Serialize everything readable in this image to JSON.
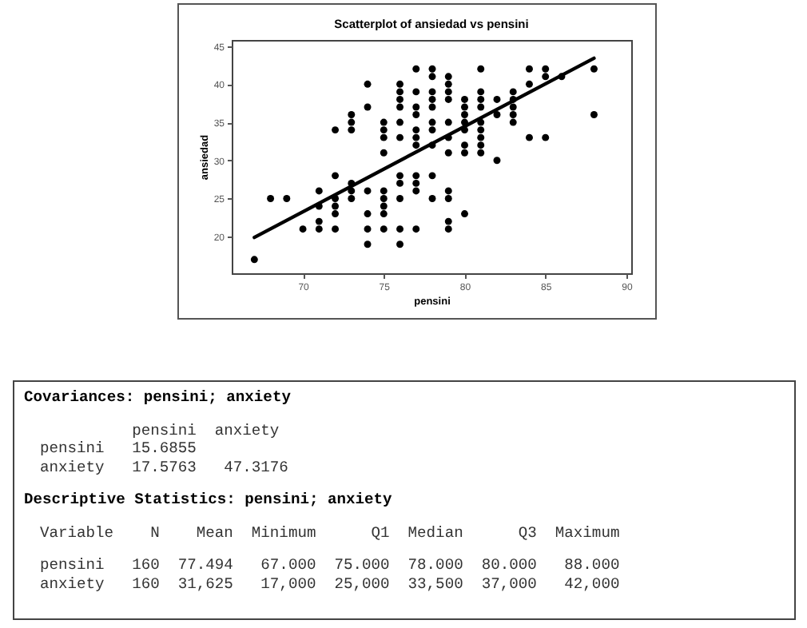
{
  "chart_data": {
    "type": "scatter",
    "title": "Scatterplot of ansiedad vs pensini",
    "xlabel": "pensini",
    "ylabel": "ansiedad",
    "xlim": [
      65.6,
      90.3
    ],
    "xticks": [
      70,
      75,
      80,
      85,
      90
    ],
    "ylim": [
      15.2,
      45.8
    ],
    "yticks": [
      20,
      25,
      30,
      35,
      40,
      45
    ],
    "series": [
      {
        "type": "scatter",
        "marker": "circle",
        "color": "#000000",
        "x": [
          67,
          68,
          69,
          70,
          71,
          71,
          71,
          71,
          72,
          72,
          72,
          72,
          72,
          72,
          73,
          73,
          73,
          73,
          73,
          73,
          74,
          74,
          74,
          74,
          74,
          74,
          75,
          75,
          75,
          75,
          75,
          75,
          75,
          75,
          75,
          76,
          76,
          76,
          76,
          76,
          76,
          76,
          76,
          76,
          76,
          76,
          77,
          77,
          77,
          77,
          77,
          77,
          77,
          77,
          77,
          77,
          77,
          78,
          78,
          78,
          78,
          78,
          78,
          78,
          78,
          78,
          78,
          79,
          79,
          79,
          79,
          79,
          79,
          79,
          79,
          79,
          79,
          79,
          80,
          80,
          80,
          80,
          80,
          80,
          80,
          80,
          81,
          81,
          81,
          81,
          81,
          81,
          81,
          81,
          81,
          82,
          82,
          82,
          83,
          83,
          83,
          83,
          83,
          84,
          84,
          84,
          85,
          85,
          85,
          86,
          88,
          88
        ],
        "values": [
          17,
          25,
          25,
          21,
          26,
          24,
          22,
          21,
          34,
          28,
          25,
          24,
          23,
          21,
          36,
          35,
          34,
          27,
          26,
          25,
          40,
          37,
          26,
          23,
          21,
          19,
          35,
          34,
          33,
          31,
          26,
          25,
          24,
          23,
          21,
          40,
          39,
          38,
          37,
          35,
          33,
          28,
          27,
          25,
          21,
          19,
          42,
          39,
          37,
          36,
          34,
          33,
          32,
          28,
          27,
          26,
          21,
          42,
          41,
          39,
          38,
          37,
          35,
          34,
          32,
          28,
          25,
          41,
          40,
          39,
          38,
          35,
          33,
          31,
          26,
          25,
          22,
          21,
          38,
          37,
          36,
          35,
          34,
          32,
          31,
          23,
          42,
          39,
          38,
          37,
          35,
          34,
          33,
          32,
          31,
          38,
          36,
          30,
          39,
          38,
          37,
          36,
          35,
          42,
          40,
          33,
          42,
          41,
          33,
          41,
          42,
          36
        ]
      },
      {
        "type": "line",
        "color": "#000000",
        "x": [
          67,
          88
        ],
        "values": [
          19.9,
          43.4
        ]
      }
    ],
    "annotations": [
      "Covariances: pensini; anxiety",
      "          pensini  anxiety",
      "pensini   15.6855",
      "anxiety   17.5763   47.3176",
      "Descriptive Statistics: pensini; anxiety",
      "Variable    N    Mean  Minimum      Q1  Median      Q3  Maximum",
      "pensini   160  77.494   67.000  75.000  78.000  80.000   88.000",
      "anxiety   160  31,625   17,000  25,000  33,500  37,000   42,000"
    ]
  }
}
